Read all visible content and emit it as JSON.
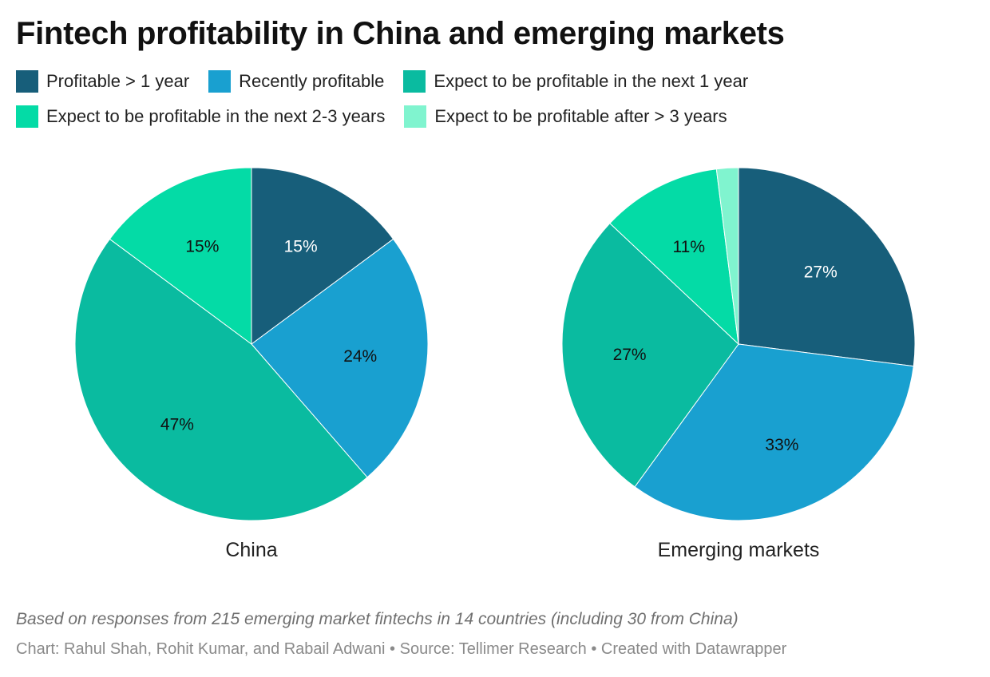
{
  "title": "Fintech profitability in China and emerging markets",
  "legend": [
    {
      "label": "Profitable > 1 year",
      "color": "#175e7a"
    },
    {
      "label": "Recently profitable",
      "color": "#19a0d0"
    },
    {
      "label": "Expect to be profitable in the next 1 year",
      "color": "#0abba0"
    },
    {
      "label": "Expect to be profitable in the next 2-3 years",
      "color": "#04dba6"
    },
    {
      "label": "Expect to be profitable after > 3 years",
      "color": "#80f4cf"
    }
  ],
  "chart_data": [
    {
      "type": "pie",
      "title": "China",
      "categories": [
        "Profitable > 1 year",
        "Recently profitable",
        "Expect to be profitable in the next 1 year",
        "Expect to be profitable in the next 2-3 years",
        "Expect to be profitable after > 3 years"
      ],
      "values": [
        15,
        24,
        47,
        15,
        0
      ],
      "labels": [
        "15%",
        "24%",
        "47%",
        "15%",
        ""
      ]
    },
    {
      "type": "pie",
      "title": "Emerging markets",
      "categories": [
        "Profitable > 1 year",
        "Recently profitable",
        "Expect to be profitable in the next 1 year",
        "Expect to be profitable in the next 2-3 years",
        "Expect to be profitable after > 3 years"
      ],
      "values": [
        27,
        33,
        27,
        11,
        2
      ],
      "labels": [
        "27%",
        "33%",
        "27%",
        "11%",
        ""
      ]
    }
  ],
  "note": "Based on responses from 215 emerging market fintechs in 14 countries (including 30 from China)",
  "credits": "Chart: Rahul Shah, Rohit Kumar, and Rabail Adwani • Source: Tellimer Research • Created with Datawrapper"
}
